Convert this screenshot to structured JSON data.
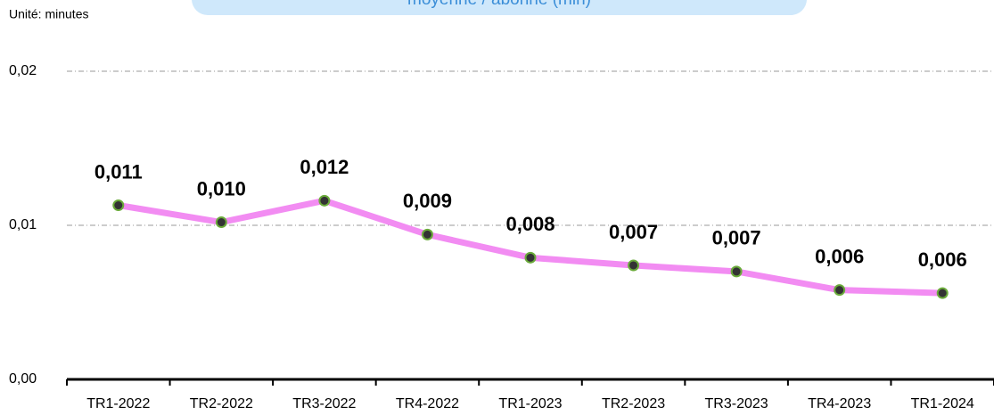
{
  "chart_data": {
    "type": "line",
    "title": "moyenne / abonné (min)",
    "subtitle": "Unité: minutes",
    "categories": [
      "TR1-2022",
      "TR2-2022",
      "TR3-2022",
      "TR4-2022",
      "TR1-2023",
      "TR2-2023",
      "TR3-2023",
      "TR4-2023",
      "TR1-2024"
    ],
    "series": [
      {
        "color": "#f28cf2",
        "values": [
          0.0113,
          0.0102,
          0.0116,
          0.0094,
          0.0079,
          0.0074,
          0.007,
          0.0058,
          0.0056
        ],
        "value_labels": [
          "0,011",
          "0,010",
          "0,012",
          "0,009",
          "0,008",
          "0,007",
          "0,007",
          "0,006",
          "0,006"
        ]
      }
    ],
    "ylim": [
      0,
      0.02
    ],
    "yticks": [
      {
        "value": 0,
        "label": "0,00"
      },
      {
        "value": 0.01,
        "label": "0,01"
      },
      {
        "value": 0.02,
        "label": "0,02"
      }
    ],
    "grid": true
  }
}
